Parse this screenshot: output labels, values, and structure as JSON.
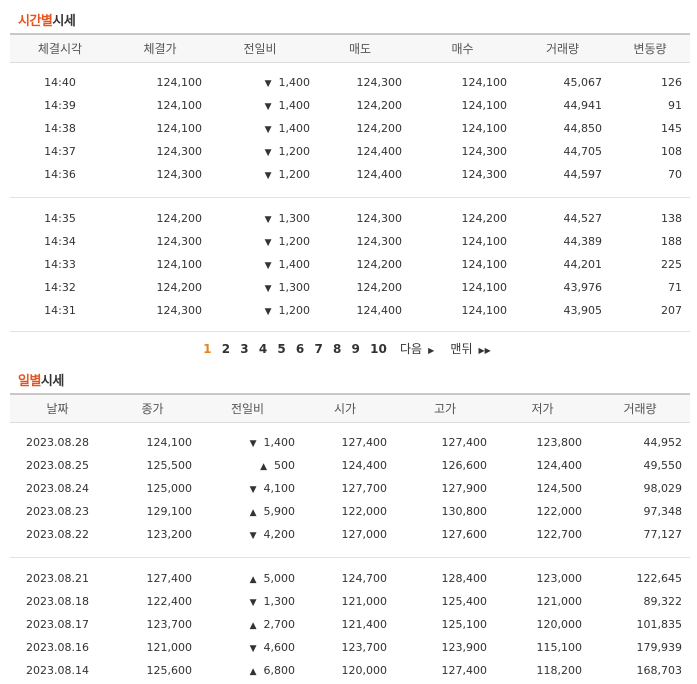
{
  "time_section": {
    "title_accent": "시간별",
    "title_rest": "시세",
    "headers": [
      "체결시각",
      "체결가",
      "전일비",
      "매도",
      "매수",
      "거래량",
      "변동량"
    ],
    "rows": [
      {
        "time": "14:40",
        "price": "124,100",
        "dir": "down",
        "diff": "1,400",
        "sell": "124,300",
        "buy": "124,100",
        "volume": "45,067",
        "change": "126"
      },
      {
        "time": "14:39",
        "price": "124,100",
        "dir": "down",
        "diff": "1,400",
        "sell": "124,200",
        "buy": "124,100",
        "volume": "44,941",
        "change": "91"
      },
      {
        "time": "14:38",
        "price": "124,100",
        "dir": "down",
        "diff": "1,400",
        "sell": "124,200",
        "buy": "124,100",
        "volume": "44,850",
        "change": "145"
      },
      {
        "time": "14:37",
        "price": "124,300",
        "dir": "down",
        "diff": "1,200",
        "sell": "124,400",
        "buy": "124,300",
        "volume": "44,705",
        "change": "108"
      },
      {
        "time": "14:36",
        "price": "124,300",
        "dir": "down",
        "diff": "1,200",
        "sell": "124,400",
        "buy": "124,300",
        "volume": "44,597",
        "change": "70"
      },
      {
        "time": "14:35",
        "price": "124,200",
        "dir": "down",
        "diff": "1,300",
        "sell": "124,300",
        "buy": "124,200",
        "volume": "44,527",
        "change": "138"
      },
      {
        "time": "14:34",
        "price": "124,300",
        "dir": "down",
        "diff": "1,200",
        "sell": "124,300",
        "buy": "124,100",
        "volume": "44,389",
        "change": "188"
      },
      {
        "time": "14:33",
        "price": "124,100",
        "dir": "down",
        "diff": "1,400",
        "sell": "124,200",
        "buy": "124,100",
        "volume": "44,201",
        "change": "225"
      },
      {
        "time": "14:32",
        "price": "124,200",
        "dir": "down",
        "diff": "1,300",
        "sell": "124,200",
        "buy": "124,100",
        "volume": "43,976",
        "change": "71"
      },
      {
        "time": "14:31",
        "price": "124,300",
        "dir": "down",
        "diff": "1,200",
        "sell": "124,400",
        "buy": "124,100",
        "volume": "43,905",
        "change": "207"
      }
    ]
  },
  "pager": {
    "current": "1",
    "pages": [
      "2",
      "3",
      "4",
      "5",
      "6",
      "7",
      "8",
      "9",
      "10"
    ],
    "next_label": "다음",
    "last_label": "맨뒤"
  },
  "daily_section": {
    "title_accent": "일별",
    "title_rest": "시세",
    "headers": [
      "날짜",
      "종가",
      "전일비",
      "시가",
      "고가",
      "저가",
      "거래량"
    ],
    "rows": [
      {
        "date": "2023.08.28",
        "close": "124,100",
        "dir": "down",
        "diff": "1,400",
        "open": "127,400",
        "high": "127,400",
        "low": "123,800",
        "volume": "44,952"
      },
      {
        "date": "2023.08.25",
        "close": "125,500",
        "dir": "up",
        "diff": "500",
        "open": "124,400",
        "high": "126,600",
        "low": "124,400",
        "volume": "49,550"
      },
      {
        "date": "2023.08.24",
        "close": "125,000",
        "dir": "down",
        "diff": "4,100",
        "open": "127,700",
        "high": "127,900",
        "low": "124,500",
        "volume": "98,029"
      },
      {
        "date": "2023.08.23",
        "close": "129,100",
        "dir": "up",
        "diff": "5,900",
        "open": "122,000",
        "high": "130,800",
        "low": "122,000",
        "volume": "97,348"
      },
      {
        "date": "2023.08.22",
        "close": "123,200",
        "dir": "down",
        "diff": "4,200",
        "open": "127,000",
        "high": "127,600",
        "low": "122,700",
        "volume": "77,127"
      },
      {
        "date": "2023.08.21",
        "close": "127,400",
        "dir": "up",
        "diff": "5,000",
        "open": "124,700",
        "high": "128,400",
        "low": "123,000",
        "volume": "122,645"
      },
      {
        "date": "2023.08.18",
        "close": "122,400",
        "dir": "down",
        "diff": "1,300",
        "open": "121,000",
        "high": "125,400",
        "low": "121,000",
        "volume": "89,322"
      },
      {
        "date": "2023.08.17",
        "close": "123,700",
        "dir": "up",
        "diff": "2,700",
        "open": "121,400",
        "high": "125,100",
        "low": "120,000",
        "volume": "101,835"
      },
      {
        "date": "2023.08.16",
        "close": "121,000",
        "dir": "down",
        "diff": "4,600",
        "open": "123,700",
        "high": "123,900",
        "low": "115,100",
        "volume": "179,939"
      },
      {
        "date": "2023.08.14",
        "close": "125,600",
        "dir": "up",
        "diff": "6,800",
        "open": "120,000",
        "high": "127,400",
        "low": "118,200",
        "volume": "168,703"
      }
    ]
  },
  "colors": {
    "accent": "#e8541e",
    "down": "#1062d6",
    "up": "#d91a1a",
    "current_page": "#e8821e"
  },
  "icons": {
    "down": "triangle-down-icon",
    "up": "triangle-up-icon"
  }
}
